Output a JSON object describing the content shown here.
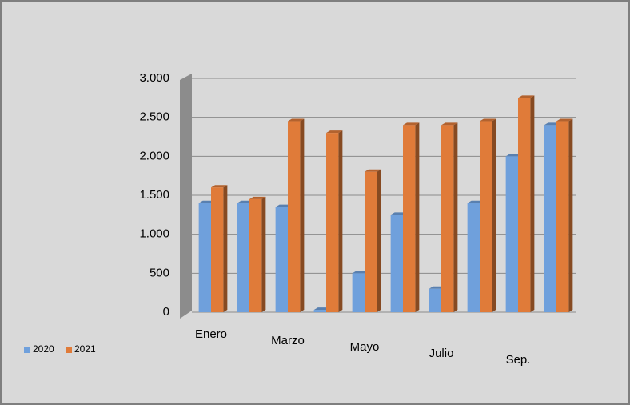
{
  "chart_data": {
    "type": "bar",
    "categories": [
      "Enero",
      null,
      "Marzo",
      null,
      "Mayo",
      null,
      "Julio",
      null,
      "Sep.",
      null
    ],
    "series": [
      {
        "name": "2020",
        "color": "#6fa0dc",
        "values": [
          1400,
          1400,
          1350,
          30,
          500,
          1250,
          300,
          1400,
          2000,
          2400
        ]
      },
      {
        "name": "2021",
        "color": "#e07b39",
        "values": [
          1600,
          1450,
          2450,
          2300,
          1800,
          2400,
          2400,
          2450,
          2750,
          2450
        ]
      }
    ],
    "ylim": [
      0,
      3000
    ],
    "yticks": [
      0,
      500,
      {
        "value": 1000,
        "label": "1.000"
      },
      {
        "value": 1500,
        "label": "1.500"
      },
      {
        "value": 2000,
        "label": "2.000"
      },
      {
        "value": 2500,
        "label": "2.500"
      },
      {
        "value": 3000,
        "label": "3.000"
      }
    ],
    "grid": true,
    "legend": "bottom-left"
  }
}
